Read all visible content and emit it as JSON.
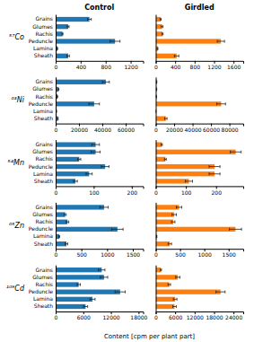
{
  "chart_data": [
    {
      "type": "bar",
      "orientation": "horizontal",
      "title": "Control",
      "ylabel": "⁵⁷Co",
      "categories": [
        "Grains",
        "Glumes",
        "Rachis",
        "Peduncle",
        "Lamina",
        "Sheath"
      ],
      "values": [
        540,
        200,
        110,
        950,
        28,
        200
      ],
      "errors": [
        30,
        15,
        8,
        80,
        3,
        20
      ],
      "xlim": [
        0,
        1400
      ],
      "xticks": [
        0,
        400,
        800,
        1200
      ]
    },
    {
      "type": "bar",
      "orientation": "horizontal",
      "title": "Girdled",
      "tick_labels": "x",
      "categories": [
        "Grains",
        "Glumes",
        "Rachis",
        "Peduncle",
        "Lamina",
        "Sheath"
      ],
      "values": [
        100,
        130,
        140,
        1340,
        40,
        430
      ],
      "errors": [
        12,
        18,
        12,
        75,
        6,
        45
      ],
      "xlim": [
        0,
        1800
      ],
      "xticks": [
        0,
        400,
        800,
        1200,
        1600
      ]
    },
    {
      "type": "bar",
      "orientation": "horizontal",
      "ylabel": "⁶³Ni",
      "categories": [
        "Grains",
        "Glumes",
        "Rachis",
        "Peduncle",
        "Lamina",
        "Sheath"
      ],
      "values": [
        43000,
        2500,
        1500,
        33000,
        700,
        2000
      ],
      "errors": [
        3000,
        300,
        150,
        4500,
        80,
        150
      ],
      "xlim": [
        0,
        75000
      ],
      "xticks": [
        0,
        20000,
        40000,
        60000
      ]
    },
    {
      "type": "bar",
      "orientation": "horizontal",
      "tick_labels": "x",
      "categories": [
        "Grains",
        "Glumes",
        "Rachis",
        "Peduncle",
        "Lamina",
        "Sheath"
      ],
      "values": [
        1100,
        1000,
        700,
        71000,
        200,
        11000
      ],
      "errors": [
        120,
        120,
        80,
        4800,
        40,
        1300
      ],
      "xlim": [
        0,
        95000
      ],
      "xticks": [
        0,
        20000,
        40000,
        60000,
        80000
      ]
    },
    {
      "type": "bar",
      "orientation": "horizontal",
      "ylabel": "⁵⁴Mn",
      "categories": [
        "Grains",
        "Glumes",
        "Rachis",
        "Peduncle",
        "Lamina",
        "Sheath"
      ],
      "values": [
        105,
        105,
        62,
        130,
        88,
        52
      ],
      "errors": [
        10,
        12,
        4,
        10,
        8,
        5
      ],
      "xlim": [
        0,
        230
      ],
      "xticks": [
        0,
        100,
        200
      ]
    },
    {
      "type": "bar",
      "orientation": "horizontal",
      "tick_labels": "x",
      "categories": [
        "Grains",
        "Glumes",
        "Rachis",
        "Peduncle",
        "Lamina",
        "Sheath"
      ],
      "values": [
        20,
        265,
        32,
        195,
        195,
        110
      ],
      "errors": [
        2,
        18,
        3,
        18,
        18,
        12
      ],
      "xlim": [
        0,
        290
      ],
      "xticks": [
        0,
        100,
        200
      ]
    },
    {
      "type": "bar",
      "orientation": "horizontal",
      "ylabel": "⁶⁵Zn",
      "categories": [
        "Grains",
        "Glumes",
        "Rachis",
        "Peduncle",
        "Lamina",
        "Sheath"
      ],
      "values": [
        940,
        185,
        230,
        1200,
        70,
        210
      ],
      "errors": [
        80,
        20,
        25,
        110,
        8,
        25
      ],
      "xlim": [
        0,
        1700
      ],
      "xticks": [
        0,
        500,
        1000,
        1500
      ]
    },
    {
      "type": "bar",
      "orientation": "horizontal",
      "tick_labels": "x",
      "categories": [
        "Grains",
        "Glumes",
        "Rachis",
        "Peduncle",
        "Lamina",
        "Sheath"
      ],
      "values": [
        480,
        380,
        360,
        1640,
        20,
        290
      ],
      "errors": [
        55,
        45,
        35,
        125,
        4,
        35
      ],
      "xlim": [
        0,
        1800
      ],
      "xticks": [
        0,
        500,
        1000,
        1500
      ]
    },
    {
      "type": "bar",
      "orientation": "horizontal",
      "ylabel": "¹⁰⁹Cd",
      "xlabel": "Content [cpm per plant part]",
      "categories": [
        "Grains",
        "Glumes",
        "Rachis",
        "Peduncle",
        "Lamina",
        "Sheath"
      ],
      "values": [
        10000,
        10500,
        5000,
        14000,
        8000,
        6500
      ],
      "errors": [
        700,
        800,
        350,
        1100,
        550,
        450
      ],
      "xlim": [
        0,
        19000
      ],
      "xticks": [
        0,
        6000,
        12000,
        18000
      ]
    },
    {
      "type": "bar",
      "orientation": "horizontal",
      "tick_labels": "x",
      "categories": [
        "Grains",
        "Glumes",
        "Rachis",
        "Peduncle",
        "Lamina",
        "Sheath"
      ],
      "values": [
        1600,
        6800,
        4200,
        20000,
        6000,
        5800
      ],
      "errors": [
        180,
        650,
        380,
        1400,
        550,
        550
      ],
      "xlim": [
        0,
        27000
      ],
      "xticks": [
        0,
        6000,
        12000,
        18000,
        24000
      ]
    }
  ]
}
